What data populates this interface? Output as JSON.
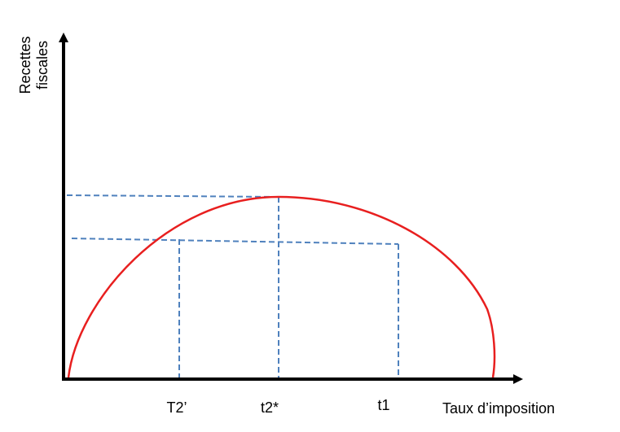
{
  "chart_data": {
    "type": "line",
    "title": "",
    "xlabel": "Taux d’imposition",
    "ylabel": [
      "Recettes",
      "fiscales"
    ],
    "x_ticks": [
      "T2’",
      "t2*",
      "t1"
    ],
    "curve": {
      "name": "",
      "shape": "Laffer curve (inverted U)",
      "color": "#e81f1f"
    },
    "guides": {
      "color": "#4f81bd",
      "style": "dashed"
    },
    "axis_color": "#000000",
    "grid": false,
    "legend": "none"
  }
}
